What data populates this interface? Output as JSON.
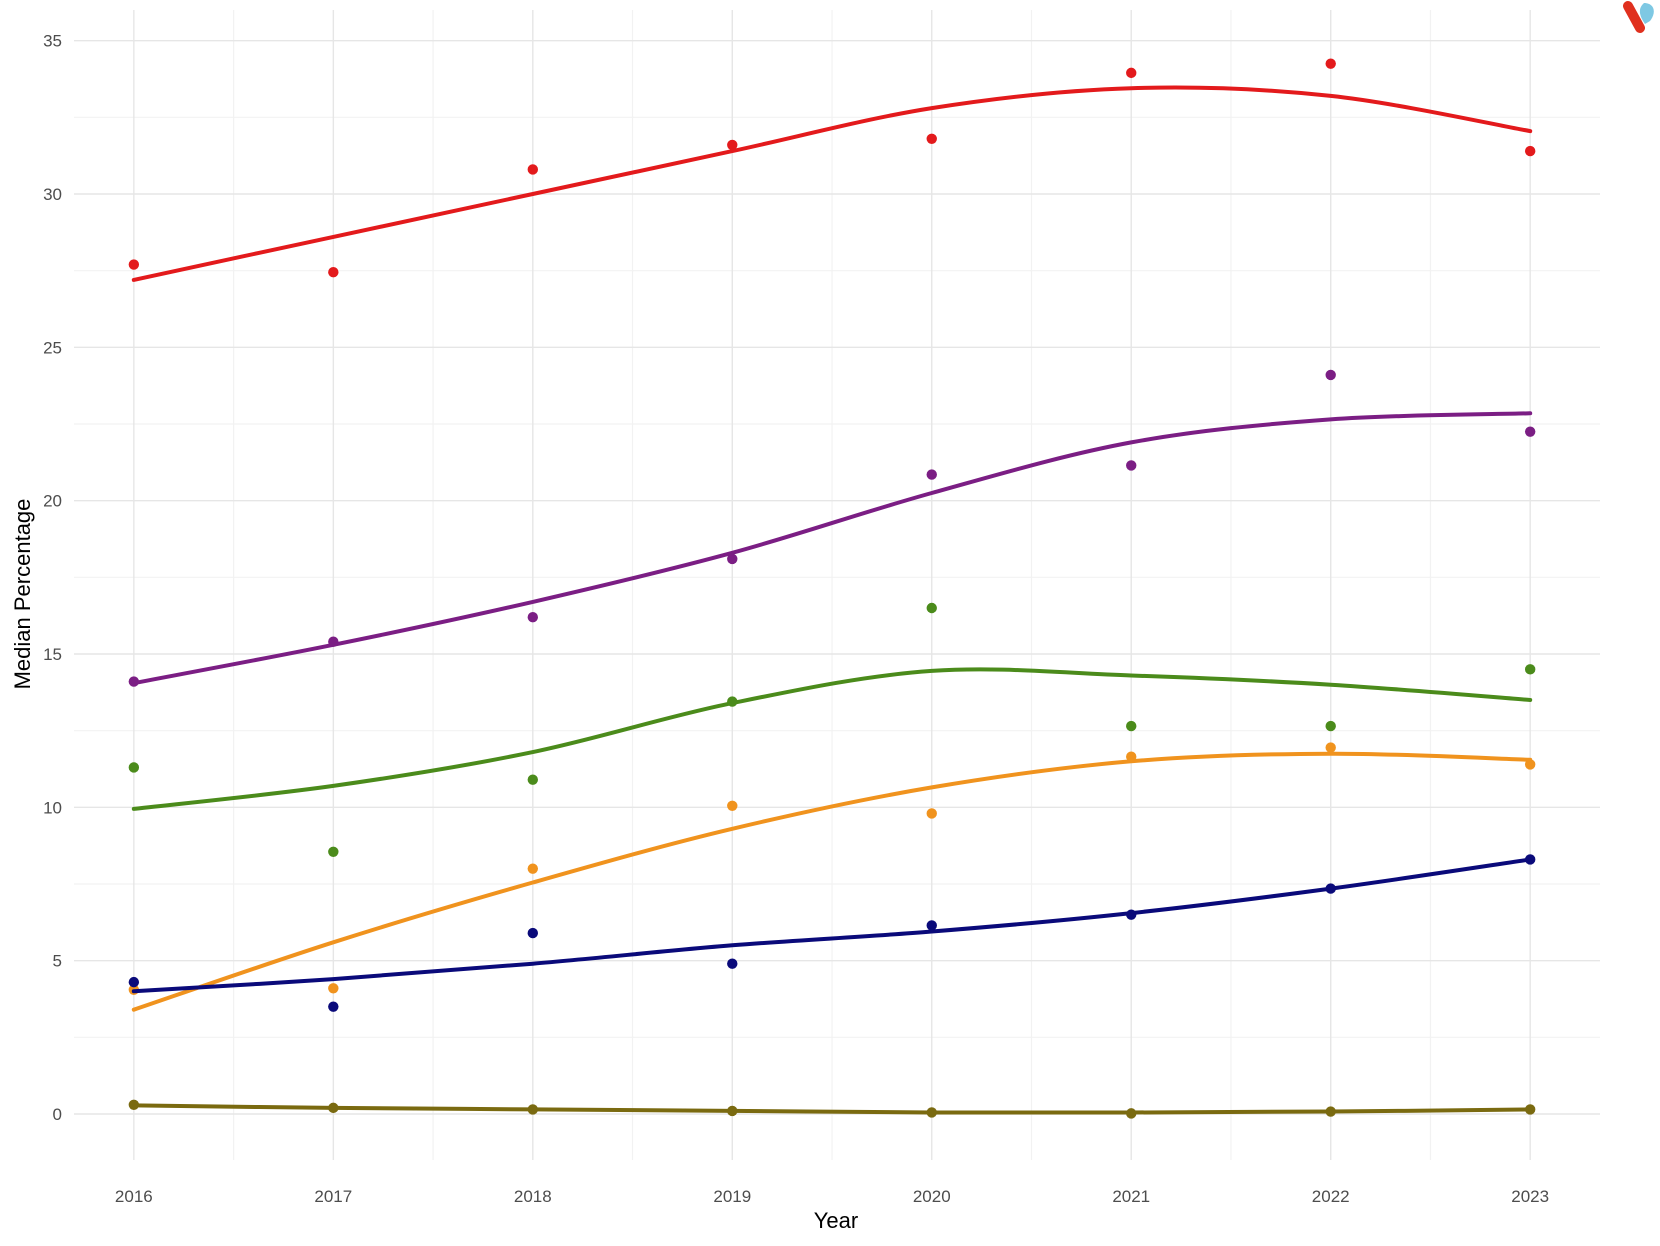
{
  "chart_data": {
    "type": "scatter",
    "title": "",
    "xlabel": "Year",
    "ylabel": "Median Percentage",
    "x": [
      2016,
      2017,
      2018,
      2019,
      2020,
      2021,
      2022,
      2023
    ],
    "xlim": [
      2015.7,
      2023.35
    ],
    "ylim": [
      -1.5,
      36
    ],
    "x_ticks": [
      "2016",
      "2017",
      "2018",
      "2019",
      "2020",
      "2021",
      "2022",
      "2023"
    ],
    "y_ticks": [
      "0",
      "5",
      "10",
      "15",
      "20",
      "25",
      "30",
      "35"
    ],
    "grid": true,
    "legend": "none",
    "series": [
      {
        "color": "#e31a1c",
        "points": [
          27.7,
          27.45,
          30.8,
          31.6,
          31.8,
          33.95,
          34.25,
          31.4
        ],
        "trend": [
          27.2,
          28.6,
          30.0,
          31.4,
          32.8,
          33.45,
          33.2,
          32.05
        ]
      },
      {
        "color": "#7b1e84",
        "points": [
          14.1,
          15.4,
          16.2,
          18.1,
          20.85,
          21.15,
          24.1,
          22.25
        ],
        "trend": [
          14.05,
          15.3,
          16.7,
          18.3,
          20.25,
          21.9,
          22.65,
          22.85
        ]
      },
      {
        "color": "#4b8b1b",
        "points": [
          11.3,
          8.55,
          10.9,
          13.45,
          16.5,
          12.65,
          12.65,
          14.5
        ],
        "trend": [
          9.95,
          10.7,
          11.8,
          13.4,
          14.45,
          14.3,
          14.0,
          13.5
        ]
      },
      {
        "color": "#f0931e",
        "points": [
          4.05,
          4.1,
          8.0,
          10.05,
          9.8,
          11.65,
          11.95,
          11.4
        ],
        "trend": [
          3.4,
          5.6,
          7.55,
          9.3,
          10.65,
          11.5,
          11.75,
          11.55
        ]
      },
      {
        "color": "#0a0a7a",
        "points": [
          4.3,
          3.5,
          5.9,
          4.9,
          6.15,
          6.5,
          7.35,
          8.3
        ],
        "trend": [
          4.0,
          4.4,
          4.9,
          5.5,
          5.95,
          6.55,
          7.35,
          8.3
        ]
      },
      {
        "color": "#7a6a10",
        "points": [
          0.3,
          0.2,
          0.15,
          0.1,
          0.05,
          0.02,
          0.08,
          0.15
        ],
        "trend": [
          0.28,
          0.2,
          0.15,
          0.1,
          0.05,
          0.05,
          0.08,
          0.15
        ]
      }
    ]
  }
}
